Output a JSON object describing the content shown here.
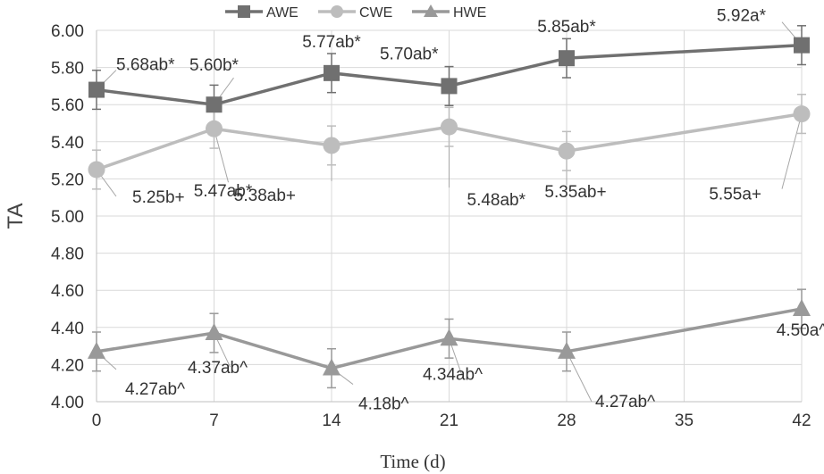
{
  "chart_data": {
    "type": "line",
    "xlabel": "Time (d)",
    "ylabel": "TA",
    "x_ticks": [
      0,
      7,
      14,
      21,
      28,
      35,
      42
    ],
    "xlim": [
      0,
      42
    ],
    "ylim": [
      4.0,
      6.0
    ],
    "y_ticks": [
      "4.00",
      "4.20",
      "4.40",
      "4.60",
      "4.80",
      "5.00",
      "5.20",
      "5.40",
      "5.60",
      "5.80",
      "6.00"
    ],
    "grid": true,
    "legend": "top-center",
    "error_bar": 0.105,
    "series": [
      {
        "name": "AWE",
        "marker": "square",
        "color": "#707070",
        "x": [
          0,
          7,
          14,
          21,
          28,
          42
        ],
        "values": [
          5.68,
          5.6,
          5.77,
          5.7,
          5.85,
          5.92
        ],
        "labels": [
          "5.68ab*",
          "5.60b*",
          "5.77ab*",
          "5.70ab*",
          "5.85ab*",
          "5.92a*"
        ]
      },
      {
        "name": "CWE",
        "marker": "circle",
        "color": "#bdbdbd",
        "x": [
          0,
          7,
          14,
          21,
          28,
          42
        ],
        "values": [
          5.25,
          5.47,
          5.38,
          5.48,
          5.35,
          5.55
        ],
        "labels": [
          "5.25b+",
          "5.47ab*",
          "5.38ab+",
          "5.48ab*",
          "5.35ab+",
          "5.55a+"
        ]
      },
      {
        "name": "HWE",
        "marker": "triangle",
        "color": "#999999",
        "x": [
          0,
          7,
          14,
          21,
          28,
          42
        ],
        "values": [
          4.27,
          4.37,
          4.18,
          4.34,
          4.27,
          4.5
        ],
        "labels": [
          "4.27ab^",
          "4.37ab^",
          "4.18b^",
          "4.34ab^",
          "4.27ab^",
          "4.50a^"
        ]
      }
    ]
  }
}
